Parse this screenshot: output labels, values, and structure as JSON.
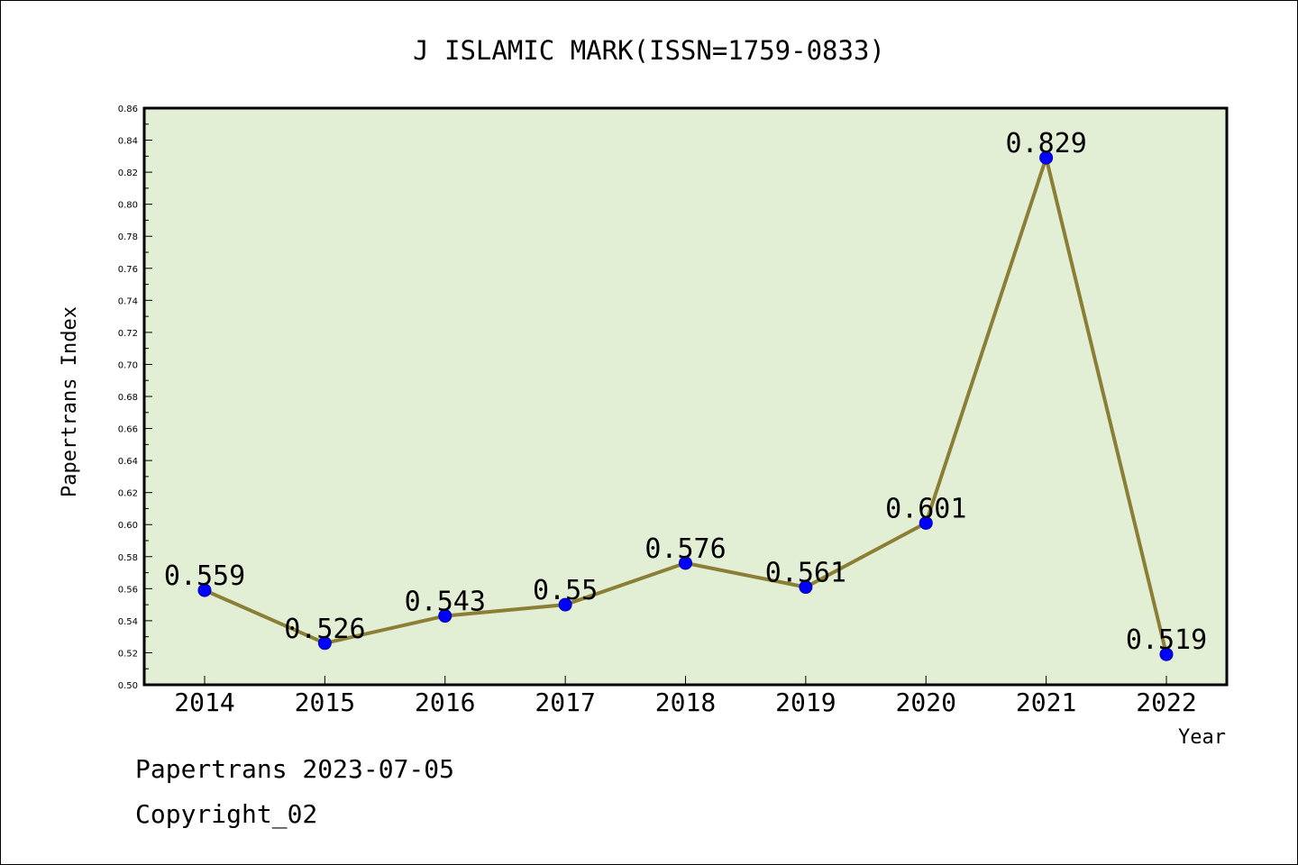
{
  "colors": {
    "plot_background": "#e2efd5",
    "line": "#8b7e35",
    "marker": "#0000ff",
    "marker_edge": "#0000aa",
    "frame": "#000000"
  },
  "footer": {
    "line1": "Papertrans 2023-07-05",
    "line2": "Copyright_02"
  },
  "chart_data": {
    "type": "line",
    "title": "J ISLAMIC MARK(ISSN=1759-0833)",
    "xlabel": "Year",
    "ylabel": "Papertrans Index",
    "categories": [
      "2014",
      "2015",
      "2016",
      "2017",
      "2018",
      "2019",
      "2020",
      "2021",
      "2022"
    ],
    "series": [
      {
        "values": [
          0.559,
          0.526,
          0.543,
          0.55,
          0.576,
          0.561,
          0.601,
          0.829,
          0.519
        ],
        "labels": [
          "0.559",
          "0.526",
          "0.543",
          "0.55",
          "0.576",
          "0.561",
          "0.601",
          "0.829",
          "0.519"
        ]
      }
    ],
    "ylim": [
      0.5,
      0.86
    ],
    "yticks": [
      "0.50",
      "0.52",
      "0.54",
      "0.56",
      "0.58",
      "0.60",
      "0.62",
      "0.64",
      "0.66",
      "0.68",
      "0.70",
      "0.72",
      "0.74",
      "0.76",
      "0.78",
      "0.80",
      "0.82",
      "0.84",
      "0.86"
    ],
    "grid": false,
    "legend": "none"
  }
}
